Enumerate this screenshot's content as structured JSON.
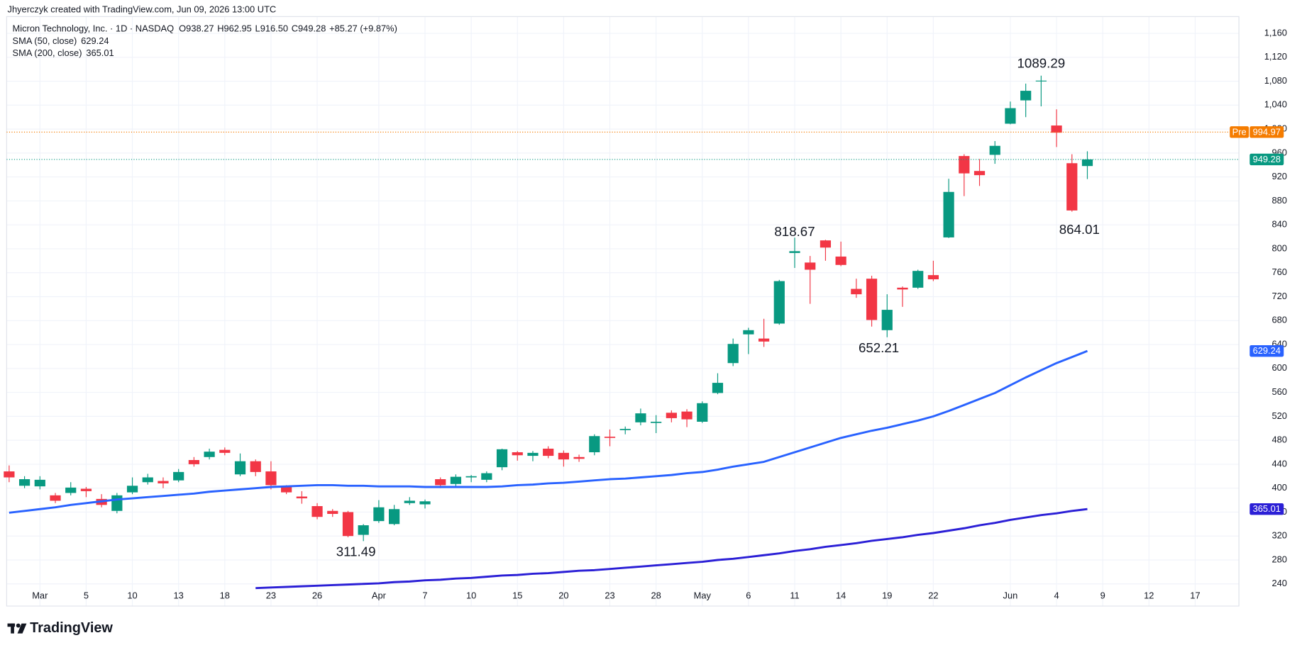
{
  "chart_data": {
    "type": "candlestick",
    "credit": "Jhyerczyk created with TradingView.com, Jun 09, 2026 13:00 UTC",
    "title": "Micron Technology, Inc. · 1D · NASDAQ",
    "ohlc_labels": [
      "O",
      "H",
      "L",
      "C"
    ],
    "change": "+85.27 (+9.87%)",
    "brand": "TradingView",
    "up_color": "#089981",
    "down_color": "#f23645",
    "grid": true,
    "categories": [
      null,
      null,
      "Mar",
      null,
      null,
      "5",
      null,
      null,
      "10",
      null,
      null,
      "13",
      null,
      null,
      "18",
      null,
      null,
      "23",
      null,
      null,
      "26",
      null,
      null,
      null,
      "Apr",
      null,
      null,
      "7",
      null,
      null,
      "10",
      null,
      null,
      "15",
      null,
      null,
      "20",
      null,
      null,
      "23",
      null,
      null,
      "28",
      null,
      null,
      "May",
      null,
      null,
      "6",
      null,
      null,
      "11",
      null,
      null,
      "14",
      null,
      null,
      "19",
      null,
      null,
      "22",
      null,
      null,
      null,
      null,
      "Jun",
      null,
      null,
      "4",
      null,
      null,
      "9",
      null,
      null,
      "12",
      null,
      null,
      "17"
    ],
    "open": [
      428,
      404,
      403,
      388,
      392,
      399,
      382,
      362,
      393,
      410,
      412,
      413,
      447,
      452,
      464,
      423,
      445,
      428,
      402,
      386,
      370,
      362,
      360,
      322,
      345,
      340,
      375,
      373,
      415,
      407,
      418,
      414,
      435,
      460,
      454,
      466,
      459,
      452,
      460,
      486,
      497,
      510,
      509,
      526,
      528,
      511,
      559,
      609,
      657,
      650,
      675,
      793,
      777,
      814,
      787,
      733,
      750,
      664,
      735,
      735,
      756,
      819,
      955,
      930,
      957,
      1009,
      1048,
      1080,
      1006,
      943,
      938.27,
      null,
      null,
      null,
      null,
      null,
      null,
      null
    ],
    "high": [
      438,
      420,
      420,
      392,
      410,
      402,
      390,
      392,
      418,
      424,
      418,
      432,
      452,
      466,
      468,
      458,
      448,
      445,
      405,
      395,
      375,
      365,
      362,
      340,
      380,
      372,
      385,
      381,
      418,
      423,
      422,
      428,
      466,
      462,
      462,
      470,
      463,
      456,
      490,
      498,
      503,
      533,
      522,
      530,
      532,
      545,
      592,
      650,
      668,
      683,
      748,
      818.67,
      788,
      815,
      812,
      750,
      755,
      724,
      737,
      765,
      780,
      917,
      958,
      950,
      980,
      1046,
      1076,
      1089.29,
      1033,
      958,
      962.95,
      null,
      null,
      null,
      null,
      null,
      null,
      null
    ],
    "low": [
      410,
      400,
      398,
      375,
      388,
      385,
      368,
      358,
      390,
      406,
      400,
      410,
      436,
      448,
      455,
      420,
      420,
      398,
      390,
      374,
      348,
      352,
      318,
      311.49,
      342,
      338,
      372,
      366,
      400,
      402,
      410,
      410,
      430,
      446,
      445,
      450,
      436,
      444,
      455,
      470,
      490,
      505,
      492,
      510,
      502,
      509,
      557,
      604,
      624,
      636,
      673,
      768,
      708,
      780,
      771,
      718,
      670,
      652.21,
      703,
      733,
      746,
      818,
      888,
      905,
      942,
      1008,
      1020,
      1038,
      970,
      862,
      916.5,
      null,
      null,
      null,
      null,
      null,
      null,
      null
    ],
    "low_labels": [
      null,
      null,
      null,
      null,
      null,
      null,
      null,
      null,
      null,
      null,
      null,
      null,
      null,
      null,
      null,
      null,
      null,
      null,
      null,
      null,
      null,
      null,
      null,
      null,
      null,
      null,
      null,
      null,
      null,
      null,
      null,
      null,
      null,
      null,
      null,
      null,
      null,
      null,
      null,
      null,
      null,
      null,
      null,
      null,
      null,
      null,
      null,
      null,
      null,
      null,
      null,
      null,
      null,
      null,
      null,
      null,
      null,
      null,
      null,
      null,
      null,
      null,
      null,
      null,
      null,
      null,
      null,
      null,
      null,
      null,
      "916.50",
      null,
      null,
      null,
      null,
      null,
      null,
      null
    ],
    "close": [
      418,
      415,
      414,
      379,
      401,
      395,
      372,
      388,
      404,
      418,
      408,
      427,
      440,
      461,
      459,
      445,
      427,
      405,
      393,
      383,
      352,
      357,
      320,
      338,
      368,
      365,
      379,
      378,
      405,
      419,
      420,
      425,
      465,
      455,
      459,
      454,
      448,
      449,
      487,
      484,
      499,
      525,
      511,
      517,
      515,
      542,
      576,
      641,
      664,
      645,
      746,
      796,
      765,
      802,
      773,
      724,
      681,
      698,
      732,
      763,
      749,
      895,
      926,
      923,
      972,
      1035,
      1064,
      1081,
      994,
      864.01,
      949.28,
      null,
      null,
      null,
      null,
      null,
      null,
      null
    ],
    "pre_market": {
      "label": "Pre",
      "value": 994.97,
      "color": "#f57c00"
    },
    "series": [
      {
        "name": "SMA (50, close)",
        "color": "#2962ff",
        "values": [
          359,
          362,
          365,
          368,
          372,
          375,
          378,
          381,
          383,
          385,
          387,
          389,
          391,
          394,
          396,
          398,
          400,
          402,
          403,
          404,
          405,
          405,
          404,
          404,
          403,
          403,
          403,
          402,
          402,
          402,
          402,
          402,
          403,
          405,
          406,
          408,
          409,
          411,
          413,
          415,
          416,
          418,
          420,
          422,
          425,
          427,
          431,
          436,
          440,
          444,
          452,
          460,
          468,
          476,
          484,
          490,
          496,
          501,
          507,
          513,
          520,
          529,
          539,
          549,
          559,
          572,
          585,
          597,
          609,
          619,
          629.24,
          null,
          null,
          null,
          null,
          null,
          null,
          null
        ]
      },
      {
        "name": "SMA (200, close)",
        "color": "#2b1fd6",
        "values": [
          null,
          null,
          null,
          null,
          null,
          null,
          null,
          null,
          null,
          null,
          null,
          null,
          null,
          null,
          null,
          null,
          233,
          234,
          235,
          236,
          237,
          238,
          239,
          240,
          241,
          243,
          244,
          246,
          247,
          249,
          250,
          252,
          254,
          255,
          257,
          258,
          260,
          262,
          263,
          265,
          267,
          269,
          271,
          273,
          275,
          277,
          280,
          282,
          285,
          288,
          291,
          295,
          298,
          302,
          305,
          308,
          312,
          315,
          318,
          322,
          325,
          329,
          333,
          338,
          342,
          347,
          351,
          355,
          358,
          362,
          365.01,
          null,
          null,
          null,
          null,
          null,
          null,
          null
        ]
      }
    ],
    "ylim": [
      203,
      1188
    ],
    "yticks": [
      240,
      280,
      320,
      360,
      400,
      440,
      480,
      520,
      560,
      600,
      640,
      680,
      720,
      760,
      800,
      840,
      880,
      920,
      960,
      {
        "value": 1000,
        "label": "1,000"
      },
      {
        "value": 1040,
        "label": "1,040"
      },
      {
        "value": 1080,
        "label": "1,080"
      },
      {
        "value": 1120,
        "label": "1,120"
      },
      {
        "value": 1160,
        "label": "1,160"
      }
    ]
  }
}
